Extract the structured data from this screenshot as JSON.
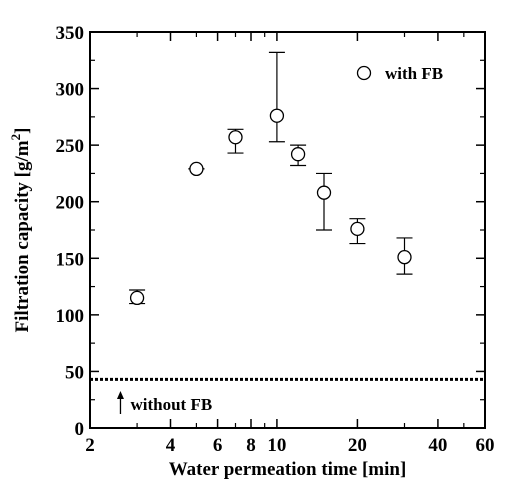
{
  "chart_data": {
    "type": "scatter",
    "xscale": "log",
    "xlim": [
      2,
      60
    ],
    "ylim": [
      0,
      350
    ],
    "xticks_major": [
      2,
      4,
      6,
      8,
      10,
      20,
      40,
      60
    ],
    "xtick_labels": [
      "2",
      "4",
      "6",
      "8",
      "10",
      "20",
      "40",
      "60"
    ],
    "xticks_minor": [
      3,
      5,
      7,
      9,
      30,
      50
    ],
    "yticks_major": [
      0,
      50,
      100,
      150,
      200,
      250,
      300,
      350
    ],
    "ytick_labels": [
      "0",
      "50",
      "100",
      "150",
      "200",
      "250",
      "300",
      "350"
    ],
    "xlabel": "Water permeation time [min]",
    "ylabel": "Filtration capacity [g/m",
    "ylabel_sup": "2",
    "ylabel_end": "]",
    "legend_position": "top-right",
    "series": [
      {
        "name": "with FB",
        "marker": "open-circle",
        "color": "#000000",
        "points": [
          {
            "x": 3,
            "y": 115,
            "ylow": 110,
            "yhigh": 122
          },
          {
            "x": 5,
            "y": 229,
            "ylow": 229,
            "yhigh": 229
          },
          {
            "x": 7,
            "y": 257,
            "ylow": 243,
            "yhigh": 264
          },
          {
            "x": 10,
            "y": 276,
            "ylow": 253,
            "yhigh": 332
          },
          {
            "x": 12,
            "y": 242,
            "ylow": 232,
            "yhigh": 250
          },
          {
            "x": 15,
            "y": 208,
            "ylow": 175,
            "yhigh": 225
          },
          {
            "x": 20,
            "y": 176,
            "ylow": 163,
            "yhigh": 185
          },
          {
            "x": 30,
            "y": 151,
            "ylow": 136,
            "yhigh": 168
          }
        ]
      }
    ],
    "reference_line": {
      "y": 43,
      "style": "dashed",
      "label": "without FB",
      "arrow_x": 2.6
    }
  }
}
